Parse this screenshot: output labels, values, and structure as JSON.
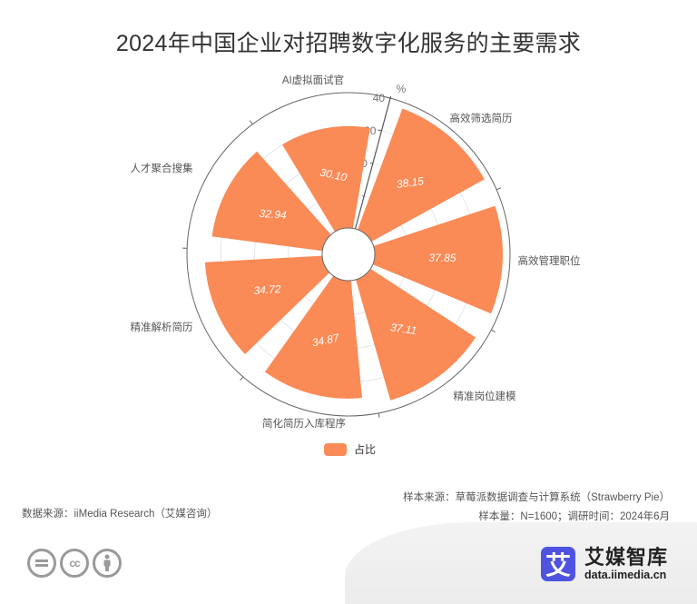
{
  "title": "2024年中国企业对招聘数字化服务的主要需求",
  "chart_data": {
    "type": "bar",
    "subtype": "polar-bar",
    "title": "2024年中国企业对招聘数字化服务的主要需求",
    "categories": [
      "高效筛选简历",
      "高效管理职位",
      "精准岗位建模",
      "简化简历入库程序",
      "精准解析简历",
      "人才聚合搜集",
      "AI虚拟面试官"
    ],
    "series": [
      {
        "name": "占比",
        "values": [
          38.15,
          37.85,
          37.11,
          34.87,
          34.72,
          32.94,
          30.1
        ]
      }
    ],
    "value_labels": [
      "38.15",
      "37.85",
      "37.11",
      "34.87",
      "34.72",
      "32.94",
      "30.10"
    ],
    "radial_axis": {
      "unit": "%",
      "min": 0,
      "max": 40,
      "ticks": [
        "0",
        "10",
        "20",
        "30",
        "40"
      ]
    },
    "legend": {
      "position": "bottom",
      "entries": [
        "占比"
      ]
    },
    "color": "#FA8A56",
    "xlabel": "",
    "ylabel": "%"
  },
  "legend": {
    "label": "占比",
    "color": "#FA8A56"
  },
  "footer": {
    "sample_source": "样本来源：草莓派数据调查与计算系统（Strawberry Pie）",
    "sample_info": "样本量：N=1600；调研时间：2024年6月",
    "data_source": "数据来源：iiMedia Research（艾媒咨询）",
    "brand_name": "艾媒智库",
    "brand_url": "data.iimedia.cn",
    "brand_logo_char": "艾",
    "cc_icons": [
      "=",
      "cc",
      "person"
    ]
  }
}
